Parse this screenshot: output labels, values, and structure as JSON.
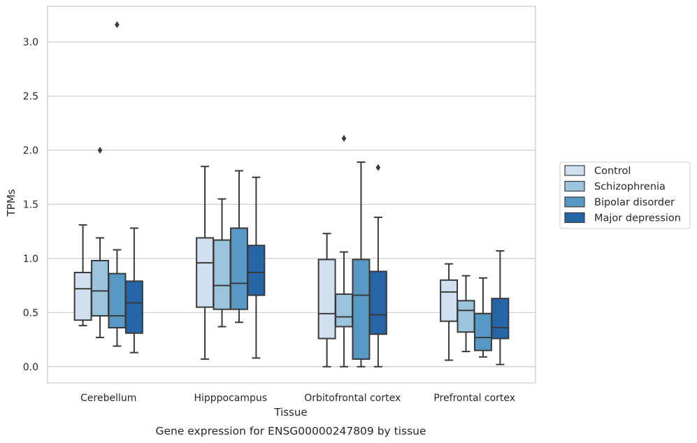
{
  "chart_data": {
    "type": "box",
    "xlabel": "Tissue",
    "ylabel": "TPMs",
    "caption": "Gene expression for ENSG00000247809 by tissue",
    "ylim": [
      -0.15,
      3.33
    ],
    "yticks": [
      0.0,
      0.5,
      1.0,
      1.5,
      2.0,
      2.5,
      3.0
    ],
    "ytick_labels": [
      "0.0",
      "0.5",
      "1.0",
      "1.5",
      "2.0",
      "2.5",
      "3.0"
    ],
    "grid": "horizontal",
    "legend_position": "right",
    "categories": [
      "Cerebellum",
      "Hipppocampus",
      "Orbitofrontal cortex",
      "Prefrontal cortex"
    ],
    "series": [
      {
        "name": "Control",
        "color": "#d0e0f0",
        "boxes": [
          {
            "whislo": 0.38,
            "q1": 0.43,
            "med": 0.72,
            "q3": 0.87,
            "whishi": 1.31,
            "fliers": []
          },
          {
            "whislo": 0.07,
            "q1": 0.55,
            "med": 0.96,
            "q3": 1.19,
            "whishi": 1.85,
            "fliers": []
          },
          {
            "whislo": 0.0,
            "q1": 0.26,
            "med": 0.49,
            "q3": 0.99,
            "whishi": 1.23,
            "fliers": []
          },
          {
            "whislo": 0.06,
            "q1": 0.42,
            "med": 0.69,
            "q3": 0.8,
            "whishi": 0.95,
            "fliers": []
          }
        ]
      },
      {
        "name": "Schizophrenia",
        "color": "#9ac4dc",
        "boxes": [
          {
            "whislo": 0.27,
            "q1": 0.47,
            "med": 0.7,
            "q3": 0.98,
            "whishi": 1.19,
            "fliers": [
              2.0
            ]
          },
          {
            "whislo": 0.37,
            "q1": 0.53,
            "med": 0.75,
            "q3": 1.17,
            "whishi": 1.55,
            "fliers": []
          },
          {
            "whislo": 0.0,
            "q1": 0.37,
            "med": 0.46,
            "q3": 0.67,
            "whishi": 1.06,
            "fliers": [
              2.11
            ]
          },
          {
            "whislo": 0.14,
            "q1": 0.32,
            "med": 0.52,
            "q3": 0.61,
            "whishi": 0.84,
            "fliers": []
          }
        ]
      },
      {
        "name": "Bipolar disorder",
        "color": "#5898c4",
        "boxes": [
          {
            "whislo": 0.19,
            "q1": 0.36,
            "med": 0.47,
            "q3": 0.86,
            "whishi": 1.08,
            "fliers": [
              3.16
            ]
          },
          {
            "whislo": 0.41,
            "q1": 0.53,
            "med": 0.77,
            "q3": 1.28,
            "whishi": 1.81,
            "fliers": []
          },
          {
            "whislo": 0.0,
            "q1": 0.07,
            "med": 0.66,
            "q3": 0.99,
            "whishi": 1.89,
            "fliers": []
          },
          {
            "whislo": 0.09,
            "q1": 0.15,
            "med": 0.27,
            "q3": 0.49,
            "whishi": 0.82,
            "fliers": []
          }
        ]
      },
      {
        "name": "Major depression",
        "color": "#2665a8",
        "boxes": [
          {
            "whislo": 0.13,
            "q1": 0.31,
            "med": 0.59,
            "q3": 0.79,
            "whishi": 1.28,
            "fliers": []
          },
          {
            "whislo": 0.08,
            "q1": 0.66,
            "med": 0.87,
            "q3": 1.12,
            "whishi": 1.75,
            "fliers": []
          },
          {
            "whislo": 0.0,
            "q1": 0.3,
            "med": 0.48,
            "q3": 0.88,
            "whishi": 1.38,
            "fliers": [
              1.84
            ]
          },
          {
            "whislo": 0.02,
            "q1": 0.26,
            "med": 0.36,
            "q3": 0.63,
            "whishi": 1.07,
            "fliers": []
          }
        ]
      }
    ]
  }
}
